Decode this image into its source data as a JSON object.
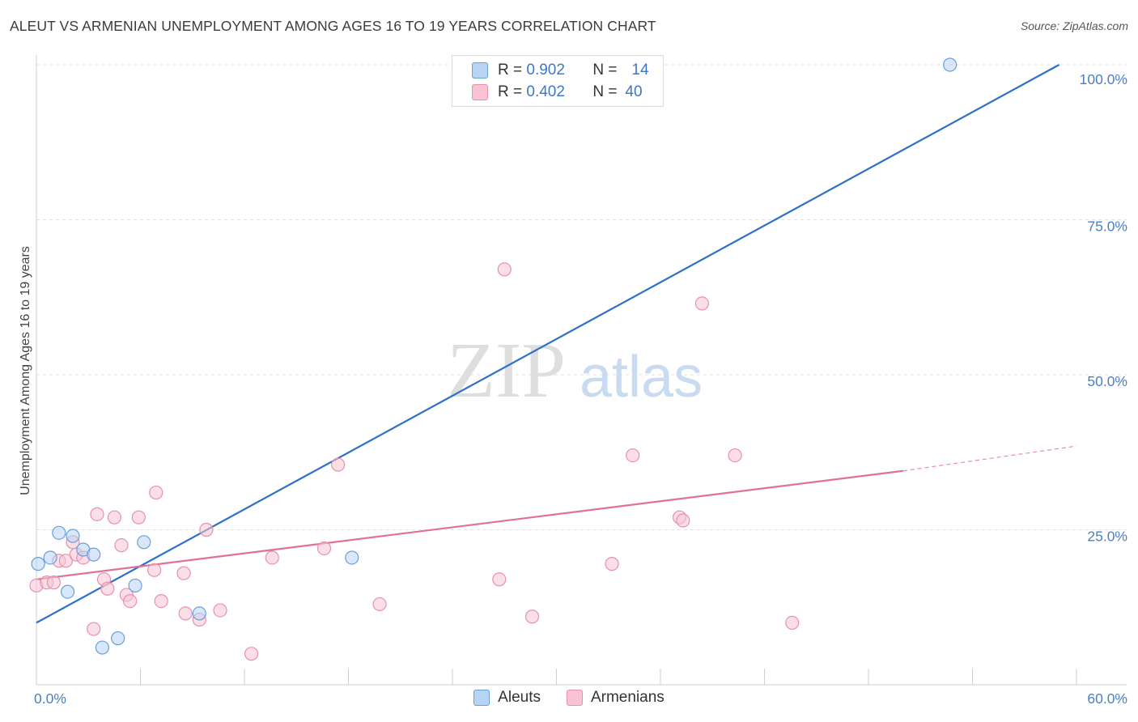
{
  "title": "ALEUT VS ARMENIAN UNEMPLOYMENT AMONG AGES 16 TO 19 YEARS CORRELATION CHART",
  "source": "Source: ZipAtlas.com",
  "watermark": {
    "zip": "ZIP",
    "atlas": "atlas"
  },
  "colors": {
    "aleut_fill": "#b8d4f5",
    "aleut_stroke": "#6a9fd8",
    "aleut_line": "#2e6fc8",
    "armenian_fill": "#f8c4d4",
    "armenian_stroke": "#e890ad",
    "armenian_line": "#e0709a",
    "tick_text": "#4a7fc8",
    "grid": "#e0e0e0"
  },
  "legend": {
    "rows": [
      {
        "r_label": "R = ",
        "r_value": "0.902",
        "n_label": "N = ",
        "n_value": "14"
      },
      {
        "r_label": "R = ",
        "r_value": "0.402",
        "n_label": "N = ",
        "n_value": "40"
      }
    ],
    "series": [
      "Aleuts",
      "Armenians"
    ]
  },
  "chart_data": {
    "type": "scatter",
    "title": "ALEUT VS ARMENIAN UNEMPLOYMENT AMONG AGES 16 TO 19 YEARS CORRELATION CHART",
    "xlabel": "",
    "ylabel": "Unemployment Among Ages 16 to 19 years",
    "xlim": [
      0,
      60
    ],
    "ylim": [
      0,
      100
    ],
    "x_tick_labels": [
      "0.0%",
      "60.0%"
    ],
    "y_tick_values": [
      25,
      50,
      75,
      100
    ],
    "y_tick_labels": [
      "25.0%",
      "50.0%",
      "75.0%",
      "100.0%"
    ],
    "grid": true,
    "series": [
      {
        "name": "Aleuts",
        "r": 0.902,
        "n": 14,
        "points": [
          [
            0.1,
            19.5
          ],
          [
            0.8,
            20.5
          ],
          [
            1.3,
            24.5
          ],
          [
            1.8,
            15.0
          ],
          [
            2.1,
            24.0
          ],
          [
            2.7,
            21.8
          ],
          [
            3.3,
            21.0
          ],
          [
            3.8,
            6.0
          ],
          [
            4.7,
            7.5
          ],
          [
            5.7,
            16.0
          ],
          [
            6.2,
            23.0
          ],
          [
            9.4,
            11.5
          ],
          [
            18.2,
            20.5
          ],
          [
            52.7,
            100.0
          ]
        ],
        "trend": {
          "x": [
            0,
            59.0
          ],
          "y": [
            10.0,
            100.0
          ],
          "style": "solid"
        }
      },
      {
        "name": "Armenians",
        "r": 0.402,
        "n": 40,
        "points": [
          [
            0.0,
            16.0
          ],
          [
            0.6,
            16.5
          ],
          [
            1.0,
            16.5
          ],
          [
            1.3,
            20.0
          ],
          [
            1.7,
            20.0
          ],
          [
            2.1,
            23.0
          ],
          [
            2.3,
            21.0
          ],
          [
            2.7,
            20.5
          ],
          [
            3.3,
            9.0
          ],
          [
            3.5,
            27.5
          ],
          [
            3.9,
            17.0
          ],
          [
            4.1,
            15.5
          ],
          [
            4.5,
            27.0
          ],
          [
            4.9,
            22.5
          ],
          [
            5.2,
            14.5
          ],
          [
            5.4,
            13.5
          ],
          [
            5.9,
            27.0
          ],
          [
            6.8,
            18.5
          ],
          [
            6.9,
            31.0
          ],
          [
            7.2,
            13.5
          ],
          [
            8.5,
            18.0
          ],
          [
            8.6,
            11.5
          ],
          [
            9.4,
            10.5
          ],
          [
            9.8,
            25.0
          ],
          [
            10.6,
            12.0
          ],
          [
            12.4,
            5.0
          ],
          [
            13.6,
            20.5
          ],
          [
            16.6,
            22.0
          ],
          [
            17.4,
            35.5
          ],
          [
            19.8,
            13.0
          ],
          [
            26.7,
            17.0
          ],
          [
            27.0,
            67.0
          ],
          [
            28.6,
            11.0
          ],
          [
            33.2,
            19.5
          ],
          [
            34.4,
            37.0
          ],
          [
            37.1,
            27.0
          ],
          [
            37.3,
            26.5
          ],
          [
            38.4,
            61.5
          ],
          [
            40.3,
            37.0
          ],
          [
            43.6,
            10.0
          ]
        ],
        "trend": {
          "x": [
            0,
            50.0
          ],
          "y": [
            17.0,
            34.5
          ],
          "style": "solid"
        },
        "trend_extension": {
          "x": [
            50.0,
            60.0
          ],
          "y": [
            34.5,
            38.5
          ],
          "style": "dashed"
        }
      }
    ]
  }
}
